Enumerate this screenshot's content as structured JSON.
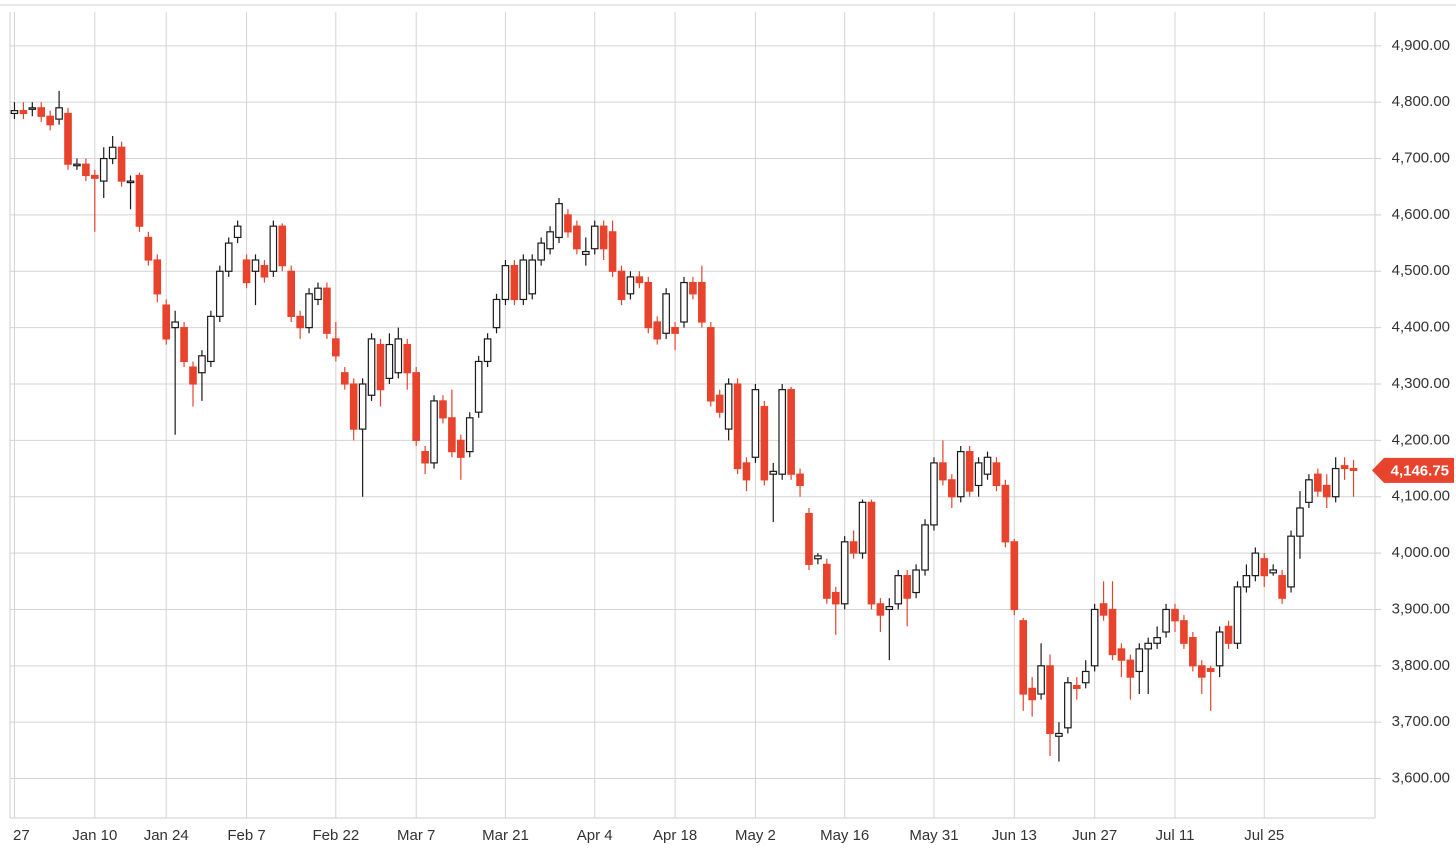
{
  "chart_data": {
    "type": "candlestick",
    "categories": [
      "27",
      null,
      null,
      null,
      null,
      null,
      null,
      null,
      null,
      "Jan 10",
      null,
      null,
      null,
      null,
      null,
      null,
      null,
      "Jan 24",
      null,
      null,
      null,
      null,
      null,
      null,
      null,
      null,
      "Feb 7",
      null,
      null,
      null,
      null,
      null,
      null,
      null,
      null,
      null,
      "Feb 22",
      null,
      null,
      null,
      null,
      null,
      null,
      null,
      null,
      "Mar 7",
      null,
      null,
      null,
      null,
      null,
      null,
      null,
      null,
      null,
      "Mar 21",
      null,
      null,
      null,
      null,
      null,
      null,
      null,
      null,
      null,
      "Apr 4",
      null,
      null,
      null,
      null,
      null,
      null,
      null,
      null,
      "Apr 18",
      null,
      null,
      null,
      null,
      null,
      null,
      null,
      null,
      "May 2",
      null,
      null,
      null,
      null,
      null,
      null,
      null,
      null,
      null,
      "May 16",
      null,
      null,
      null,
      null,
      null,
      null,
      null,
      null,
      null,
      "May 31",
      null,
      null,
      null,
      null,
      null,
      null,
      null,
      null,
      "Jun 13",
      null,
      null,
      null,
      null,
      null,
      null,
      null,
      null,
      "Jun 27",
      null,
      null,
      null,
      null,
      null,
      null,
      null,
      null,
      "Jul 11",
      null,
      null,
      null,
      null,
      null,
      null,
      null,
      null,
      null,
      "Jul 25",
      null,
      null,
      null,
      null,
      null,
      null,
      null,
      null,
      null,
      null
    ],
    "open": [
      4780,
      4785,
      4790,
      4790,
      4775,
      4770,
      4780,
      4690,
      4690,
      4670,
      4660,
      4700,
      4720,
      4660,
      4670,
      4560,
      4520,
      4440,
      4400,
      4400,
      4330,
      4320,
      4340,
      4420,
      4500,
      4560,
      4520,
      4500,
      4510,
      4500,
      4580,
      4500,
      4420,
      4400,
      4450,
      4470,
      4380,
      4320,
      4300,
      4220,
      4280,
      4370,
      4310,
      4320,
      4370,
      4320,
      4180,
      4160,
      4270,
      4240,
      4200,
      4180,
      4250,
      4340,
      4400,
      4450,
      4510,
      4450,
      4460,
      4520,
      4540,
      4560,
      4600,
      4580,
      4530,
      4540,
      4580,
      4570,
      4500,
      4460,
      4490,
      4480,
      4410,
      4390,
      4400,
      4410,
      4480,
      4480,
      4400,
      4280,
      4220,
      4300,
      4160,
      4170,
      4260,
      4140,
      4140,
      4290,
      4140,
      4070,
      3990,
      3980,
      3930,
      3910,
      4020,
      4000,
      4090,
      3910,
      3900,
      3910,
      3960,
      3930,
      3970,
      4050,
      4160,
      4130,
      4100,
      4180,
      4120,
      4140,
      4160,
      4120,
      4020,
      3880,
      3760,
      3750,
      3800,
      3675,
      3690,
      3765,
      3770,
      3800,
      3910,
      3900,
      3830,
      3810,
      3790,
      3830,
      3840,
      3860,
      3900,
      3880,
      3850,
      3800,
      3795,
      3800,
      3870,
      3840,
      3940,
      3960,
      3990,
      3965,
      3960,
      3940,
      4030,
      4090,
      4140,
      4120,
      4100,
      4155,
      4150
    ],
    "high": [
      4800,
      4800,
      4800,
      4800,
      4785,
      4820,
      4790,
      4700,
      4700,
      4680,
      4720,
      4740,
      4730,
      4670,
      4675,
      4570,
      4530,
      4450,
      4430,
      4410,
      4340,
      4360,
      4430,
      4510,
      4560,
      4590,
      4530,
      4530,
      4520,
      4590,
      4585,
      4510,
      4430,
      4470,
      4480,
      4480,
      4410,
      4330,
      4310,
      4310,
      4390,
      4380,
      4390,
      4400,
      4380,
      4330,
      4190,
      4280,
      4280,
      4290,
      4210,
      4250,
      4350,
      4390,
      4460,
      4520,
      4520,
      4530,
      4530,
      4560,
      4580,
      4630,
      4610,
      4590,
      4560,
      4590,
      4590,
      4590,
      4510,
      4500,
      4500,
      4490,
      4420,
      4470,
      4410,
      4490,
      4490,
      4510,
      4410,
      4290,
      4310,
      4310,
      4170,
      4300,
      4270,
      4160,
      4300,
      4295,
      4150,
      4080,
      4000,
      3990,
      3940,
      4030,
      4040,
      4095,
      4095,
      3920,
      3920,
      3970,
      3970,
      3980,
      4060,
      4170,
      4200,
      4140,
      4190,
      4190,
      4170,
      4180,
      4170,
      4130,
      4025,
      3885,
      3780,
      3840,
      3820,
      3700,
      3780,
      3780,
      3810,
      3910,
      3950,
      3950,
      3840,
      3820,
      3840,
      3850,
      3870,
      3910,
      3910,
      3890,
      3860,
      3810,
      3800,
      3870,
      3880,
      3950,
      3980,
      4010,
      4000,
      3980,
      3970,
      4040,
      4110,
      4140,
      4150,
      4140,
      4170,
      4170,
      4165
    ],
    "low": [
      4770,
      4770,
      4775,
      4765,
      4750,
      4760,
      4680,
      4680,
      4660,
      4570,
      4630,
      4690,
      4650,
      4610,
      4570,
      4510,
      4445,
      4370,
      4210,
      4330,
      4260,
      4270,
      4330,
      4410,
      4490,
      4550,
      4470,
      4440,
      4480,
      4490,
      4500,
      4410,
      4380,
      4390,
      4440,
      4380,
      4340,
      4290,
      4200,
      4100,
      4270,
      4260,
      4300,
      4310,
      4290,
      4190,
      4140,
      4150,
      4230,
      4170,
      4130,
      4170,
      4240,
      4330,
      4390,
      4440,
      4440,
      4440,
      4450,
      4510,
      4530,
      4550,
      4560,
      4530,
      4510,
      4530,
      4520,
      4490,
      4440,
      4450,
      4470,
      4390,
      4370,
      4380,
      4360,
      4400,
      4450,
      4400,
      4260,
      4240,
      4200,
      4140,
      4110,
      4160,
      4120,
      4055,
      4130,
      4130,
      4100,
      3970,
      3980,
      3910,
      3855,
      3900,
      3990,
      3990,
      3900,
      3860,
      3810,
      3900,
      3870,
      3920,
      3960,
      4040,
      4120,
      4080,
      4090,
      4100,
      4100,
      4130,
      4110,
      4010,
      3890,
      3720,
      3710,
      3740,
      3640,
      3630,
      3680,
      3740,
      3760,
      3790,
      3880,
      3810,
      3780,
      3740,
      3750,
      3750,
      3830,
      3850,
      3860,
      3830,
      3790,
      3750,
      3720,
      3780,
      3830,
      3830,
      3930,
      3950,
      3940,
      3960,
      3910,
      3930,
      3990,
      4080,
      4100,
      4080,
      4090,
      4130,
      4100
    ],
    "close": [
      4785,
      4780,
      4790,
      4775,
      4760,
      4790,
      4690,
      4690,
      4670,
      4665,
      4700,
      4720,
      4660,
      4660,
      4580,
      4520,
      4460,
      4380,
      4410,
      4340,
      4300,
      4350,
      4420,
      4500,
      4550,
      4580,
      4480,
      4520,
      4490,
      4580,
      4510,
      4420,
      4400,
      4460,
      4470,
      4390,
      4350,
      4300,
      4220,
      4300,
      4380,
      4290,
      4370,
      4380,
      4320,
      4200,
      4160,
      4270,
      4240,
      4180,
      4170,
      4240,
      4340,
      4380,
      4450,
      4510,
      4450,
      4520,
      4520,
      4550,
      4570,
      4620,
      4570,
      4540,
      4535,
      4580,
      4540,
      4500,
      4450,
      4490,
      4480,
      4400,
      4380,
      4460,
      4390,
      4480,
      4460,
      4410,
      4270,
      4250,
      4300,
      4150,
      4130,
      4290,
      4130,
      4145,
      4290,
      4140,
      4120,
      3980,
      3995,
      3920,
      3910,
      4020,
      4000,
      4090,
      3910,
      3890,
      3905,
      3960,
      3920,
      3970,
      4050,
      4160,
      4130,
      4100,
      4180,
      4110,
      4160,
      4170,
      4120,
      4020,
      3900,
      3750,
      3740,
      3800,
      3680,
      3680,
      3770,
      3760,
      3790,
      3900,
      3890,
      3820,
      3810,
      3780,
      3830,
      3840,
      3850,
      3900,
      3880,
      3840,
      3800,
      3780,
      3790,
      3860,
      3840,
      3940,
      3960,
      4000,
      3960,
      3970,
      3920,
      4030,
      4080,
      4130,
      4110,
      4100,
      4150,
      4150,
      4146.75
    ],
    "up_color": "#ffffff",
    "down_color": "#e8432d",
    "outline_color": "#1a1a1a",
    "ylim": [
      3530,
      4960
    ],
    "yticks": [
      {
        "value": 3600,
        "label": "3,600.00"
      },
      {
        "value": 3700,
        "label": "3,700.00"
      },
      {
        "value": 3800,
        "label": "3,800.00"
      },
      {
        "value": 3900,
        "label": "3,900.00"
      },
      {
        "value": 4000,
        "label": "4,000.00"
      },
      {
        "value": 4100,
        "label": "4,100.00"
      },
      {
        "value": 4200,
        "label": "4,200.00"
      },
      {
        "value": 4300,
        "label": "4,300.00"
      },
      {
        "value": 4400,
        "label": "4,400.00"
      },
      {
        "value": 4500,
        "label": "4,500.00"
      },
      {
        "value": 4600,
        "label": "4,600.00"
      },
      {
        "value": 4700,
        "label": "4,700.00"
      },
      {
        "value": 4800,
        "label": "4,800.00"
      },
      {
        "value": 4900,
        "label": "4,900.00"
      }
    ],
    "grid": true,
    "last_price": 4146.75,
    "last_price_label": "4,146.75"
  }
}
